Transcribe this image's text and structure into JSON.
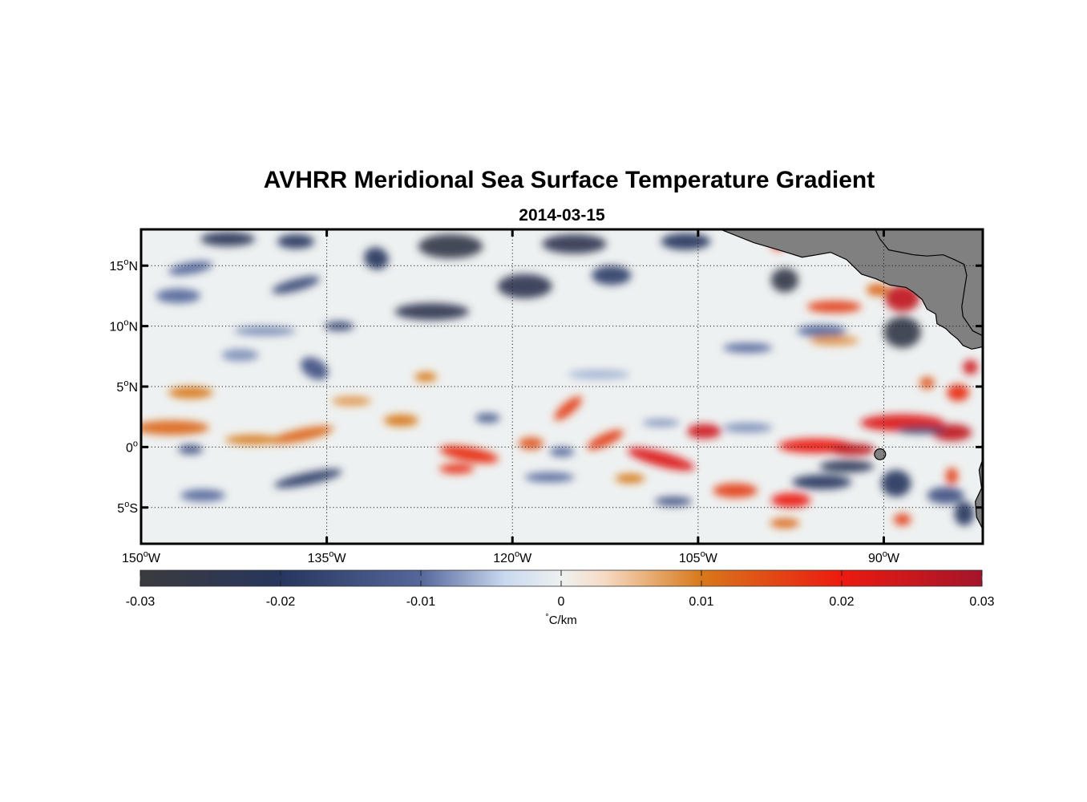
{
  "title": "AVHRR Meridional Sea Surface Temperature Gradient",
  "subtitle": "2014-03-15",
  "map": {
    "lon_range": [
      -150,
      -82
    ],
    "lat_range": [
      -8,
      18
    ],
    "x_ticks": [
      {
        "value": -150,
        "num": "150",
        "hemi": "W"
      },
      {
        "value": -135,
        "num": "135",
        "hemi": "W"
      },
      {
        "value": -120,
        "num": "120",
        "hemi": "W"
      },
      {
        "value": -105,
        "num": "105",
        "hemi": "W"
      },
      {
        "value": -90,
        "num": "90",
        "hemi": "W"
      }
    ],
    "y_ticks": [
      {
        "value": 15,
        "num": "15",
        "hemi": "N"
      },
      {
        "value": 10,
        "num": "10",
        "hemi": "N"
      },
      {
        "value": 5,
        "num": "5",
        "hemi": "N"
      },
      {
        "value": 0,
        "num": "0",
        "hemi": ""
      },
      {
        "value": -5,
        "num": "5",
        "hemi": "S"
      }
    ],
    "degree_symbol": "o",
    "grid": "dotted",
    "land_color": "#808080",
    "features": [
      {
        "lon": -143,
        "lat": 17.2,
        "v": -0.022,
        "rx": 2.2,
        "ry": 0.6,
        "rot": 0
      },
      {
        "lon": -137.5,
        "lat": 17.0,
        "v": -0.02,
        "rx": 1.5,
        "ry": 0.6,
        "rot": 0
      },
      {
        "lon": -125,
        "lat": 16.6,
        "v": -0.026,
        "rx": 2.6,
        "ry": 1.0,
        "rot": 0
      },
      {
        "lon": -115,
        "lat": 16.8,
        "v": -0.024,
        "rx": 2.6,
        "ry": 0.8,
        "rot": 0
      },
      {
        "lon": -106,
        "lat": 17.0,
        "v": -0.02,
        "rx": 2.0,
        "ry": 0.7,
        "rot": 0
      },
      {
        "lon": -131,
        "lat": 15.6,
        "v": -0.02,
        "rx": 1.0,
        "ry": 0.9,
        "rot": 20
      },
      {
        "lon": -146,
        "lat": 14.8,
        "v": -0.01,
        "rx": 1.8,
        "ry": 0.5,
        "rot": -10
      },
      {
        "lon": -119,
        "lat": 13.3,
        "v": -0.024,
        "rx": 2.2,
        "ry": 1.0,
        "rot": 0
      },
      {
        "lon": -112,
        "lat": 14.2,
        "v": -0.018,
        "rx": 1.6,
        "ry": 0.8,
        "rot": 0
      },
      {
        "lon": -126.5,
        "lat": 11.2,
        "v": -0.024,
        "rx": 3.0,
        "ry": 0.7,
        "rot": 0
      },
      {
        "lon": -137.5,
        "lat": 13.4,
        "v": -0.016,
        "rx": 2.0,
        "ry": 0.5,
        "rot": -15
      },
      {
        "lon": -147,
        "lat": 12.5,
        "v": -0.01,
        "rx": 1.8,
        "ry": 0.6,
        "rot": 0
      },
      {
        "lon": -134,
        "lat": 10.0,
        "v": -0.016,
        "rx": 1.2,
        "ry": 0.4,
        "rot": 0
      },
      {
        "lon": -98,
        "lat": 13.8,
        "v": -0.026,
        "rx": 1.1,
        "ry": 1.0,
        "rot": 0
      },
      {
        "lon": -98.5,
        "lat": 16.7,
        "v": 0.018,
        "rx": 0.6,
        "ry": 0.4,
        "rot": 0
      },
      {
        "lon": -94,
        "lat": 11.6,
        "v": 0.016,
        "rx": 2.2,
        "ry": 0.5,
        "rot": 0
      },
      {
        "lon": -88.5,
        "lat": 12.3,
        "v": 0.026,
        "rx": 1.4,
        "ry": 1.1,
        "rot": 0
      },
      {
        "lon": -90.5,
        "lat": 13.0,
        "v": 0.012,
        "rx": 0.9,
        "ry": 0.5,
        "rot": 0
      },
      {
        "lon": -88.5,
        "lat": 9.5,
        "v": -0.026,
        "rx": 1.5,
        "ry": 1.3,
        "rot": 0
      },
      {
        "lon": -95,
        "lat": 9.6,
        "v": -0.01,
        "rx": 2.0,
        "ry": 0.5,
        "rot": 0
      },
      {
        "lon": -101,
        "lat": 8.2,
        "v": -0.01,
        "rx": 2.0,
        "ry": 0.4,
        "rot": 0
      },
      {
        "lon": -94,
        "lat": 8.8,
        "v": 0.008,
        "rx": 2.0,
        "ry": 0.4,
        "rot": 0
      },
      {
        "lon": -136,
        "lat": 6.5,
        "v": -0.014,
        "rx": 1.2,
        "ry": 0.8,
        "rot": 30
      },
      {
        "lon": -142,
        "lat": 7.6,
        "v": -0.008,
        "rx": 1.5,
        "ry": 0.5,
        "rot": 0
      },
      {
        "lon": -127,
        "lat": 5.8,
        "v": 0.01,
        "rx": 0.9,
        "ry": 0.4,
        "rot": 0
      },
      {
        "lon": -146,
        "lat": 4.5,
        "v": 0.01,
        "rx": 1.8,
        "ry": 0.5,
        "rot": 0
      },
      {
        "lon": -133,
        "lat": 3.8,
        "v": 0.008,
        "rx": 1.6,
        "ry": 0.4,
        "rot": 0
      },
      {
        "lon": -147.5,
        "lat": 1.6,
        "v": 0.012,
        "rx": 3.0,
        "ry": 0.6,
        "rot": 0
      },
      {
        "lon": -137,
        "lat": 1.0,
        "v": 0.012,
        "rx": 2.6,
        "ry": 0.5,
        "rot": -12
      },
      {
        "lon": -141,
        "lat": 0.6,
        "v": 0.01,
        "rx": 2.2,
        "ry": 0.4,
        "rot": 0
      },
      {
        "lon": -129,
        "lat": 2.2,
        "v": 0.01,
        "rx": 1.4,
        "ry": 0.5,
        "rot": 0
      },
      {
        "lon": -123.5,
        "lat": -0.6,
        "v": 0.018,
        "rx": 2.4,
        "ry": 0.6,
        "rot": 10
      },
      {
        "lon": -124.5,
        "lat": -1.8,
        "v": 0.018,
        "rx": 1.4,
        "ry": 0.4,
        "rot": 0
      },
      {
        "lon": -118.5,
        "lat": 0.3,
        "v": 0.014,
        "rx": 1.0,
        "ry": 0.5,
        "rot": 0
      },
      {
        "lon": -115.5,
        "lat": 3.2,
        "v": 0.016,
        "rx": 1.4,
        "ry": 0.5,
        "rot": -40
      },
      {
        "lon": -112.5,
        "lat": 0.6,
        "v": 0.016,
        "rx": 1.6,
        "ry": 0.5,
        "rot": -25
      },
      {
        "lon": -108,
        "lat": -1.0,
        "v": 0.022,
        "rx": 2.8,
        "ry": 0.6,
        "rot": 15
      },
      {
        "lon": -104.5,
        "lat": 1.3,
        "v": 0.024,
        "rx": 1.4,
        "ry": 0.6,
        "rot": 0
      },
      {
        "lon": -110.5,
        "lat": -2.6,
        "v": 0.01,
        "rx": 1.2,
        "ry": 0.4,
        "rot": 0
      },
      {
        "lon": -117,
        "lat": -2.5,
        "v": -0.01,
        "rx": 2.0,
        "ry": 0.4,
        "rot": 0
      },
      {
        "lon": -107,
        "lat": -4.5,
        "v": -0.014,
        "rx": 1.5,
        "ry": 0.4,
        "rot": 0
      },
      {
        "lon": -136.5,
        "lat": -2.6,
        "v": -0.018,
        "rx": 2.8,
        "ry": 0.5,
        "rot": -12
      },
      {
        "lon": -145,
        "lat": -4.0,
        "v": -0.01,
        "rx": 1.8,
        "ry": 0.5,
        "rot": 0
      },
      {
        "lon": -146,
        "lat": -0.2,
        "v": -0.014,
        "rx": 1.0,
        "ry": 0.4,
        "rot": 0
      },
      {
        "lon": -122,
        "lat": 2.4,
        "v": -0.012,
        "rx": 1.0,
        "ry": 0.4,
        "rot": 0
      },
      {
        "lon": -116,
        "lat": -0.4,
        "v": -0.01,
        "rx": 1.0,
        "ry": 0.4,
        "rot": 0
      },
      {
        "lon": -95.5,
        "lat": 0.1,
        "v": 0.02,
        "rx": 3.0,
        "ry": 0.6,
        "rot": 0
      },
      {
        "lon": -92.5,
        "lat": -0.2,
        "v": 0.026,
        "rx": 1.8,
        "ry": 0.5,
        "rot": 0
      },
      {
        "lon": -93,
        "lat": -1.6,
        "v": -0.022,
        "rx": 2.2,
        "ry": 0.5,
        "rot": 0
      },
      {
        "lon": -95,
        "lat": -2.9,
        "v": -0.02,
        "rx": 2.4,
        "ry": 0.6,
        "rot": 0
      },
      {
        "lon": -97.5,
        "lat": -4.4,
        "v": 0.02,
        "rx": 1.6,
        "ry": 0.6,
        "rot": 0
      },
      {
        "lon": -102,
        "lat": -3.6,
        "v": 0.016,
        "rx": 1.8,
        "ry": 0.6,
        "rot": 0
      },
      {
        "lon": -89,
        "lat": -3.0,
        "v": -0.02,
        "rx": 1.2,
        "ry": 1.1,
        "rot": 0
      },
      {
        "lon": -85,
        "lat": -4.0,
        "v": -0.014,
        "rx": 1.5,
        "ry": 0.7,
        "rot": 0
      },
      {
        "lon": -88.5,
        "lat": 2.0,
        "v": 0.022,
        "rx": 3.4,
        "ry": 0.7,
        "rot": 0
      },
      {
        "lon": -84.5,
        "lat": 1.2,
        "v": 0.026,
        "rx": 1.6,
        "ry": 0.7,
        "rot": 0
      },
      {
        "lon": -87,
        "lat": 1.4,
        "v": -0.018,
        "rx": 2.0,
        "ry": 0.3,
        "rot": 0
      },
      {
        "lon": -84,
        "lat": 4.5,
        "v": 0.018,
        "rx": 0.9,
        "ry": 0.7,
        "rot": 0
      },
      {
        "lon": -86.5,
        "lat": 5.3,
        "v": 0.014,
        "rx": 0.6,
        "ry": 0.5,
        "rot": 0
      },
      {
        "lon": -83,
        "lat": 6.6,
        "v": 0.024,
        "rx": 0.6,
        "ry": 0.6,
        "rot": 0
      },
      {
        "lon": -84.5,
        "lat": -2.4,
        "v": 0.016,
        "rx": 0.5,
        "ry": 0.7,
        "rot": 0
      },
      {
        "lon": -88.5,
        "lat": -6.0,
        "v": 0.016,
        "rx": 0.7,
        "ry": 0.5,
        "rot": 0
      },
      {
        "lon": -83.5,
        "lat": -5.5,
        "v": -0.02,
        "rx": 0.8,
        "ry": 1.0,
        "rot": 0
      },
      {
        "lon": -98,
        "lat": -6.3,
        "v": 0.012,
        "rx": 1.2,
        "ry": 0.4,
        "rot": 0
      },
      {
        "lon": -101,
        "lat": 1.6,
        "v": -0.008,
        "rx": 2.0,
        "ry": 0.4,
        "rot": 0
      },
      {
        "lon": -108,
        "lat": 2.0,
        "v": -0.008,
        "rx": 1.5,
        "ry": 0.3,
        "rot": 0
      },
      {
        "lon": -113,
        "lat": 6.0,
        "v": -0.006,
        "rx": 2.5,
        "ry": 0.4,
        "rot": 0
      },
      {
        "lon": -140,
        "lat": 9.6,
        "v": -0.008,
        "rx": 2.5,
        "ry": 0.4,
        "rot": 0
      }
    ],
    "land": [
      [
        [
          -103.2,
          18
        ],
        [
          -100.5,
          16.9
        ],
        [
          -98.5,
          16.3
        ],
        [
          -96.6,
          15.7
        ],
        [
          -95.4,
          15.9
        ],
        [
          -94.3,
          16.1
        ],
        [
          -93.0,
          15.5
        ],
        [
          -91.8,
          14.3
        ],
        [
          -90.6,
          13.9
        ],
        [
          -89.5,
          13.4
        ],
        [
          -88.2,
          13.2
        ],
        [
          -87.6,
          12.8
        ],
        [
          -86.9,
          12.2
        ],
        [
          -86.5,
          11.4
        ],
        [
          -85.8,
          11.0
        ],
        [
          -85.7,
          10.2
        ],
        [
          -85.0,
          9.8
        ],
        [
          -84.6,
          9.4
        ],
        [
          -84.0,
          8.9
        ],
        [
          -83.6,
          8.4
        ],
        [
          -82.9,
          8.1
        ],
        [
          -82.4,
          8.2
        ],
        [
          -82.0,
          8.3
        ],
        [
          -82,
          18
        ]
      ],
      [
        [
          -91.6,
          18
        ],
        [
          -90.7,
          18
        ],
        [
          -90.3,
          17.2
        ],
        [
          -89.6,
          16.3
        ],
        [
          -88.6,
          16.1
        ],
        [
          -87.6,
          15.9
        ],
        [
          -86.5,
          15.8
        ],
        [
          -85.2,
          15.9
        ],
        [
          -84.3,
          15.5
        ],
        [
          -83.5,
          15.1
        ],
        [
          -83.3,
          14.2
        ],
        [
          -83.5,
          12.9
        ],
        [
          -83.7,
          11.6
        ],
        [
          -83.6,
          10.8
        ],
        [
          -82.8,
          9.6
        ],
        [
          -82.0,
          9.2
        ],
        [
          -82,
          18
        ]
      ],
      [
        [
          -82,
          -1.0
        ],
        [
          -82.3,
          -1.9
        ],
        [
          -82.1,
          -3.4
        ],
        [
          -82.6,
          -4.5
        ],
        [
          -82.5,
          -5.8
        ],
        [
          -82.0,
          -6.8
        ],
        [
          -82,
          -8
        ]
      ]
    ],
    "islands": [
      {
        "lon": -90.3,
        "lat": -0.6,
        "r": 0.45
      }
    ]
  },
  "colorbar": {
    "min": -0.03,
    "max": 0.03,
    "ticks": [
      {
        "value": -0.03,
        "label": "-0.03"
      },
      {
        "value": -0.02,
        "label": "-0.02"
      },
      {
        "value": -0.01,
        "label": "-0.01"
      },
      {
        "value": 0,
        "label": "0"
      },
      {
        "value": 0.01,
        "label": "0.01"
      },
      {
        "value": 0.02,
        "label": "0.02"
      },
      {
        "value": 0.03,
        "label": "0.03"
      }
    ],
    "unit_degree": "°",
    "unit_text": "C/km",
    "stops": [
      {
        "v": -0.03,
        "color": "#3b3b3e"
      },
      {
        "v": -0.02,
        "color": "#27365e"
      },
      {
        "v": -0.01,
        "color": "#55679b"
      },
      {
        "v": -0.004,
        "color": "#c9d9ef"
      },
      {
        "v": 0.0,
        "color": "#eef1f1"
      },
      {
        "v": 0.003,
        "color": "#f6dcc6"
      },
      {
        "v": 0.01,
        "color": "#d8781a"
      },
      {
        "v": 0.02,
        "color": "#ec1a10"
      },
      {
        "v": 0.03,
        "color": "#a3152b"
      }
    ]
  }
}
